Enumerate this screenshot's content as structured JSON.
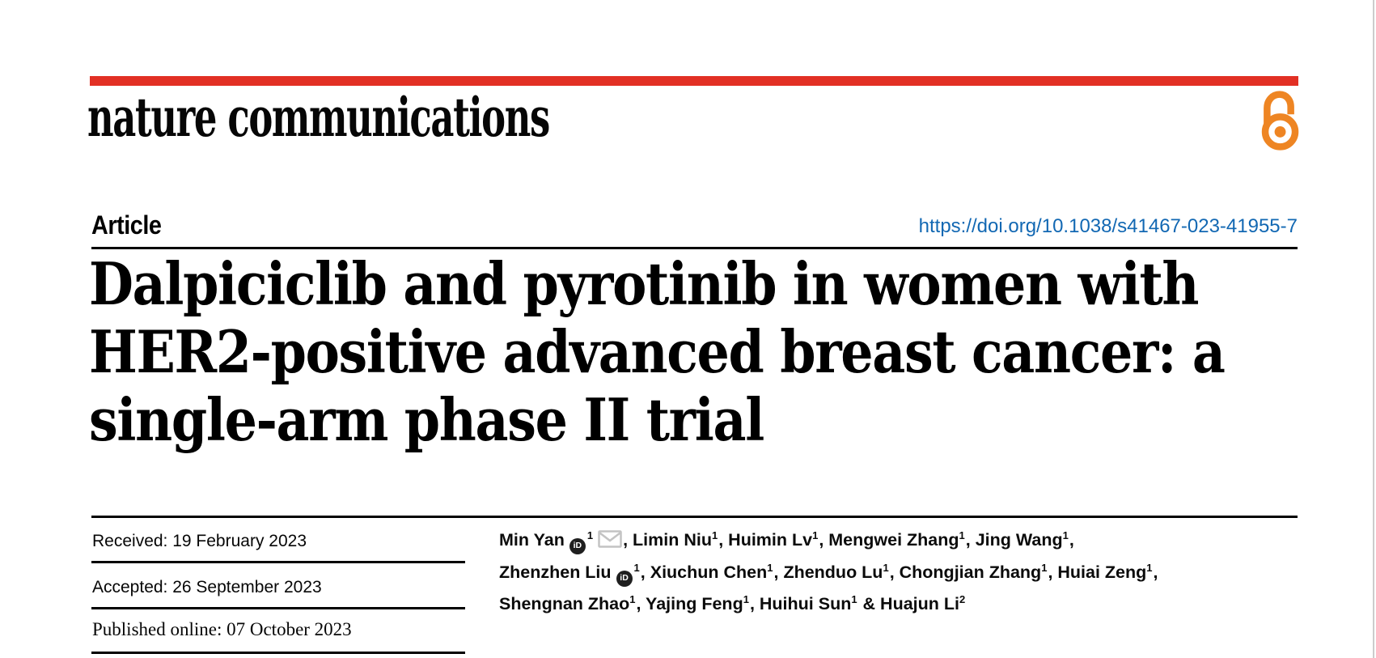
{
  "brand": {
    "journal_name": "nature communications",
    "open_access_icon": "open-access-padlock-icon"
  },
  "article": {
    "type_label": "Article",
    "doi_url": "https://doi.org/10.1038/s41467-023-41955-7",
    "title_lines": [
      "Dalpiciclib and pyrotinib in women with",
      "HER2-positive advanced breast cancer: a",
      "single-arm phase II trial"
    ]
  },
  "history": {
    "received": "Received: 19 February 2023",
    "accepted": "Accepted: 26 September 2023",
    "published": "Published online: 07 October 2023"
  },
  "authors": {
    "orcid_label": "iD",
    "lines": [
      [
        {
          "text": "Min Yan"
        },
        {
          "icon": "orcid"
        },
        {
          "sup": "1"
        },
        {
          "icon": "mail"
        },
        {
          "text": ", Limin Niu"
        },
        {
          "sup": "1"
        },
        {
          "text": ", Huimin Lv"
        },
        {
          "sup": "1"
        },
        {
          "text": ", Mengwei Zhang"
        },
        {
          "sup": "1"
        },
        {
          "text": ", Jing Wang"
        },
        {
          "sup": "1"
        },
        {
          "text": ","
        }
      ],
      [
        {
          "text": "Zhenzhen Liu"
        },
        {
          "icon": "orcid"
        },
        {
          "sup": "1"
        },
        {
          "text": ", Xiuchun Chen"
        },
        {
          "sup": "1"
        },
        {
          "text": ", Zhenduo Lu"
        },
        {
          "sup": "1"
        },
        {
          "text": ", Chongjian Zhang"
        },
        {
          "sup": "1"
        },
        {
          "text": ", Huiai Zeng"
        },
        {
          "sup": "1"
        },
        {
          "text": ","
        }
      ],
      [
        {
          "text": "Shengnan Zhao"
        },
        {
          "sup": "1"
        },
        {
          "text": ", Yajing Feng"
        },
        {
          "sup": "1"
        },
        {
          "text": ", Huihui Sun"
        },
        {
          "sup": "1"
        },
        {
          "text": " & Huajun Li"
        },
        {
          "sup": "2"
        }
      ]
    ]
  },
  "colors": {
    "brand_red": "#e23024",
    "oa_orange": "#ee8523",
    "link_blue": "#1268b3",
    "rule_black": "#000000",
    "edge_gray": "#cccccc",
    "icon_gray": "#c3c3c3",
    "orcid_black": "#1f1f1f"
  }
}
